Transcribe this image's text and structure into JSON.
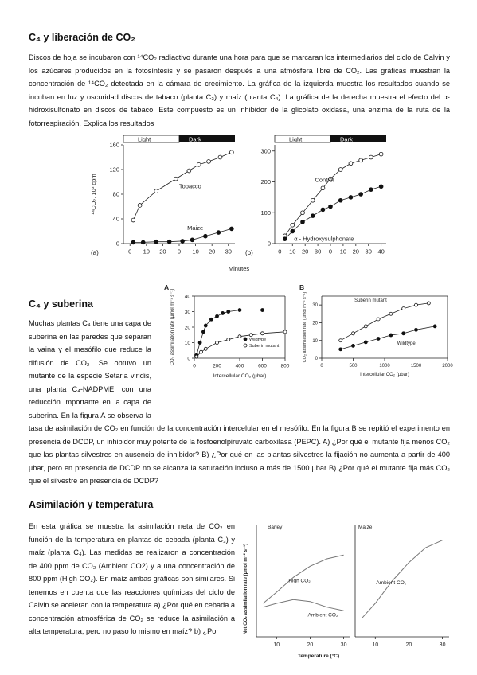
{
  "sections": [
    {
      "title": "C₄ y liberación de CO₂",
      "paragraph": "Discos de hoja se incubaron con ¹⁴CO₂ radiactivo durante una hora para que se marcaran los intermediarios del ciclo de Calvin y los azúcares producidos en la fotosíntesis y se pasaron después a una atmósfera libre de CO₂. Las gráficas muestran la concentración de ¹⁴CO₂ detectada en la cámara de crecimiento. La gráfica de la izquierda muestra los resultados cuando se incuban en luz y oscuridad discos de tabaco (planta C₃) y maíz (planta C₄). La gráfica de la derecha muestra el efecto del α-hidroxisulfonato en discos de tabaco. Este compuesto es un inhibidor de la glicolato oxidasa, una enzima de la ruta de la fotorrespiración. Explica los resultados"
    },
    {
      "title": "C₄ y suberina",
      "paragraph": "Muchas plantas C₄ tiene una capa de suberina en las paredes que separan la vaina y el mesófilo que reduce la difusión de CO₂. Se obtuvo un mutante de la especie Setaria viridis, una planta C₄-NADPME, con una reducción importante en la capa de suberina. En la figura A se observa la tasa de asimilación de CO₂ en función de la concentración intercelular en el mesófilo. En la figura B se repitió el experimento en presencia de DCDP, un inhibidor muy potente de la fosfoenolpiruvato carboxilasa (PEPC). A) ¿Por qué el mutante fija menos CO₂ que las plantas silvestres en ausencia de inhibidor? B) ¿Por qué en las plantas silvestres la fijación no aumenta a partir de 400 µbar, pero en presencia de DCDP no se alcanza la saturación incluso a más de 1500 µbar B) ¿Por qué el mutante fija más CO₂ que el silvestre en presencia de DCDP?"
    },
    {
      "title": "Asimilación y temperatura",
      "paragraph": "En esta gráfica se muestra la asimilación neta de CO₂ en función de la temperatura en plantas de cebada (planta C₃) y maíz (planta C₄). Las medidas se realizaron a concentración de 400 ppm de CO₂ (Ambient CO2) y a una concentración de 800 ppm (High CO₂). En maíz ambas gráficas son similares. Si tenemos en cuenta que las reacciones químicas del ciclo de Calvin se aceleran con la temperatura a) ¿Por qué en cebada a concentración atmosférica de CO₂ se reduce la asimilación a alta temperatura, pero no paso lo mismo en maíz? b) ¿Por"
    }
  ],
  "figures": {
    "fig1": {
      "xlabel": "Minutes",
      "panels": [
        {
          "label": "(a)",
          "phases": [
            "Light",
            "Dark"
          ],
          "ylabel": "¹⁴CO₂, 10³ cpm",
          "xlim": [
            -4,
            64
          ],
          "xticks": [
            0,
            10,
            20,
            {
              "value": 30,
              "label": "0"
            },
            {
              "value": 40,
              "label": "10"
            },
            {
              "value": 50,
              "label": "20"
            },
            {
              "value": 60,
              "label": "30"
            }
          ],
          "ylim": [
            0,
            160
          ],
          "yticks": [
            0,
            40,
            80,
            120,
            160
          ],
          "series": [
            {
              "name": "Tobacco",
              "marker": "open",
              "x": [
                2,
                6,
                16,
                28,
                36,
                42,
                48,
                55,
                62
              ],
              "values": [
                38,
                62,
                85,
                105,
                118,
                128,
                133,
                140,
                148
              ]
            },
            {
              "name": "Maize",
              "marker": "filled",
              "x": [
                2,
                8,
                16,
                24,
                32,
                38,
                46,
                54,
                62
              ],
              "values": [
                2,
                2,
                3,
                3,
                4,
                6,
                12,
                18,
                24
              ]
            }
          ]
        },
        {
          "label": "(b)",
          "phases": [
            "Light",
            "Dark"
          ],
          "xlim": [
            -4,
            84
          ],
          "xticks": [
            0,
            10,
            20,
            30,
            {
              "value": 40,
              "label": "0"
            },
            {
              "value": 50,
              "label": "10"
            },
            {
              "value": 60,
              "label": "20"
            },
            {
              "value": 70,
              "label": "30"
            },
            {
              "value": 80,
              "label": "40"
            }
          ],
          "ylim": [
            0,
            320
          ],
          "yticks": [
            0,
            100,
            200,
            300
          ],
          "series": [
            {
              "name": "Control",
              "marker": "open",
              "x": [
                4,
                10,
                18,
                26,
                34,
                40,
                48,
                56,
                64,
                72,
                80
              ],
              "values": [
                25,
                60,
                100,
                140,
                180,
                210,
                240,
                260,
                270,
                280,
                290
              ]
            },
            {
              "name": "α - Hydroxysulphonate",
              "marker": "filled",
              "x": [
                4,
                10,
                18,
                26,
                34,
                40,
                48,
                56,
                64,
                72,
                80
              ],
              "values": [
                15,
                40,
                70,
                90,
                110,
                120,
                140,
                150,
                160,
                175,
                185
              ]
            }
          ]
        }
      ]
    },
    "figA": {
      "label": "A",
      "ylabel": "CO₂ assimilation rate (µmol m⁻² s⁻¹)",
      "xlabel": "Intercellular CO₂ (µbar)",
      "xlim": [
        0,
        800
      ],
      "xticks": [
        0,
        200,
        400,
        600,
        800
      ],
      "ylim": [
        0,
        40
      ],
      "yticks": [
        0,
        10,
        20,
        30,
        40
      ],
      "series": [
        {
          "name": "Wildtype",
          "marker": "filled",
          "x": [
            20,
            50,
            80,
            100,
            150,
            200,
            250,
            300,
            400,
            600
          ],
          "values": [
            2,
            10,
            17,
            21,
            25,
            27,
            29,
            30,
            31,
            31
          ]
        },
        {
          "name": "Suberin mutant",
          "marker": "open",
          "x": [
            20,
            60,
            100,
            200,
            300,
            400,
            500,
            600,
            800
          ],
          "values": [
            1,
            4,
            6,
            10,
            12,
            14,
            15,
            16,
            17
          ]
        }
      ]
    },
    "figB": {
      "label": "B",
      "ylabel": "CO₂ assimilation rate (µmol m⁻² s⁻¹)",
      "xlabel": "Intercellular CO₂ (µbar)",
      "xlim": [
        0,
        2000
      ],
      "xticks": [
        0,
        500,
        1000,
        1500,
        2000
      ],
      "ylim": [
        0,
        35
      ],
      "yticks": [
        0,
        10,
        20,
        30
      ],
      "series": [
        {
          "name": "Suberin mutant",
          "marker": "open",
          "x": [
            300,
            500,
            700,
            900,
            1100,
            1300,
            1500,
            1700
          ],
          "values": [
            10,
            14,
            18,
            22,
            25,
            28,
            30,
            31
          ]
        },
        {
          "name": "Wildtype",
          "marker": "filled",
          "x": [
            300,
            500,
            700,
            900,
            1100,
            1300,
            1500,
            1800
          ],
          "values": [
            5,
            7,
            9,
            11,
            13,
            14,
            16,
            18
          ]
        }
      ]
    },
    "figC": {
      "ylabel": "Net CO₂ assimilation rate (µmol m⁻² s⁻¹)",
      "xlabel": "Temperature (°C)",
      "panels": [
        {
          "label": "Barley",
          "xlim": [
            4,
            32
          ],
          "xticks": [
            10,
            20,
            30
          ],
          "ylim": [
            0,
            30
          ],
          "series": [
            {
              "name": "High CO₂",
              "marker": "none",
              "x": [
                6,
                10,
                15,
                20,
                25,
                30
              ],
              "values": [
                9,
                12,
                16,
                19,
                21,
                22
              ]
            },
            {
              "name": "Ambient CO₂",
              "marker": "none",
              "x": [
                6,
                10,
                15,
                20,
                25,
                30
              ],
              "values": [
                8,
                9,
                10,
                9.5,
                8,
                7
              ]
            }
          ]
        },
        {
          "label": "Maize",
          "xlim": [
            4,
            32
          ],
          "xticks": [
            10,
            20,
            30
          ],
          "ylim": [
            0,
            30
          ],
          "series": [
            {
              "name": "Ambient CO₂",
              "marker": "none",
              "x": [
                6,
                10,
                15,
                20,
                25,
                30
              ],
              "values": [
                5,
                9,
                15,
                20,
                24,
                26
              ]
            }
          ]
        }
      ]
    }
  }
}
